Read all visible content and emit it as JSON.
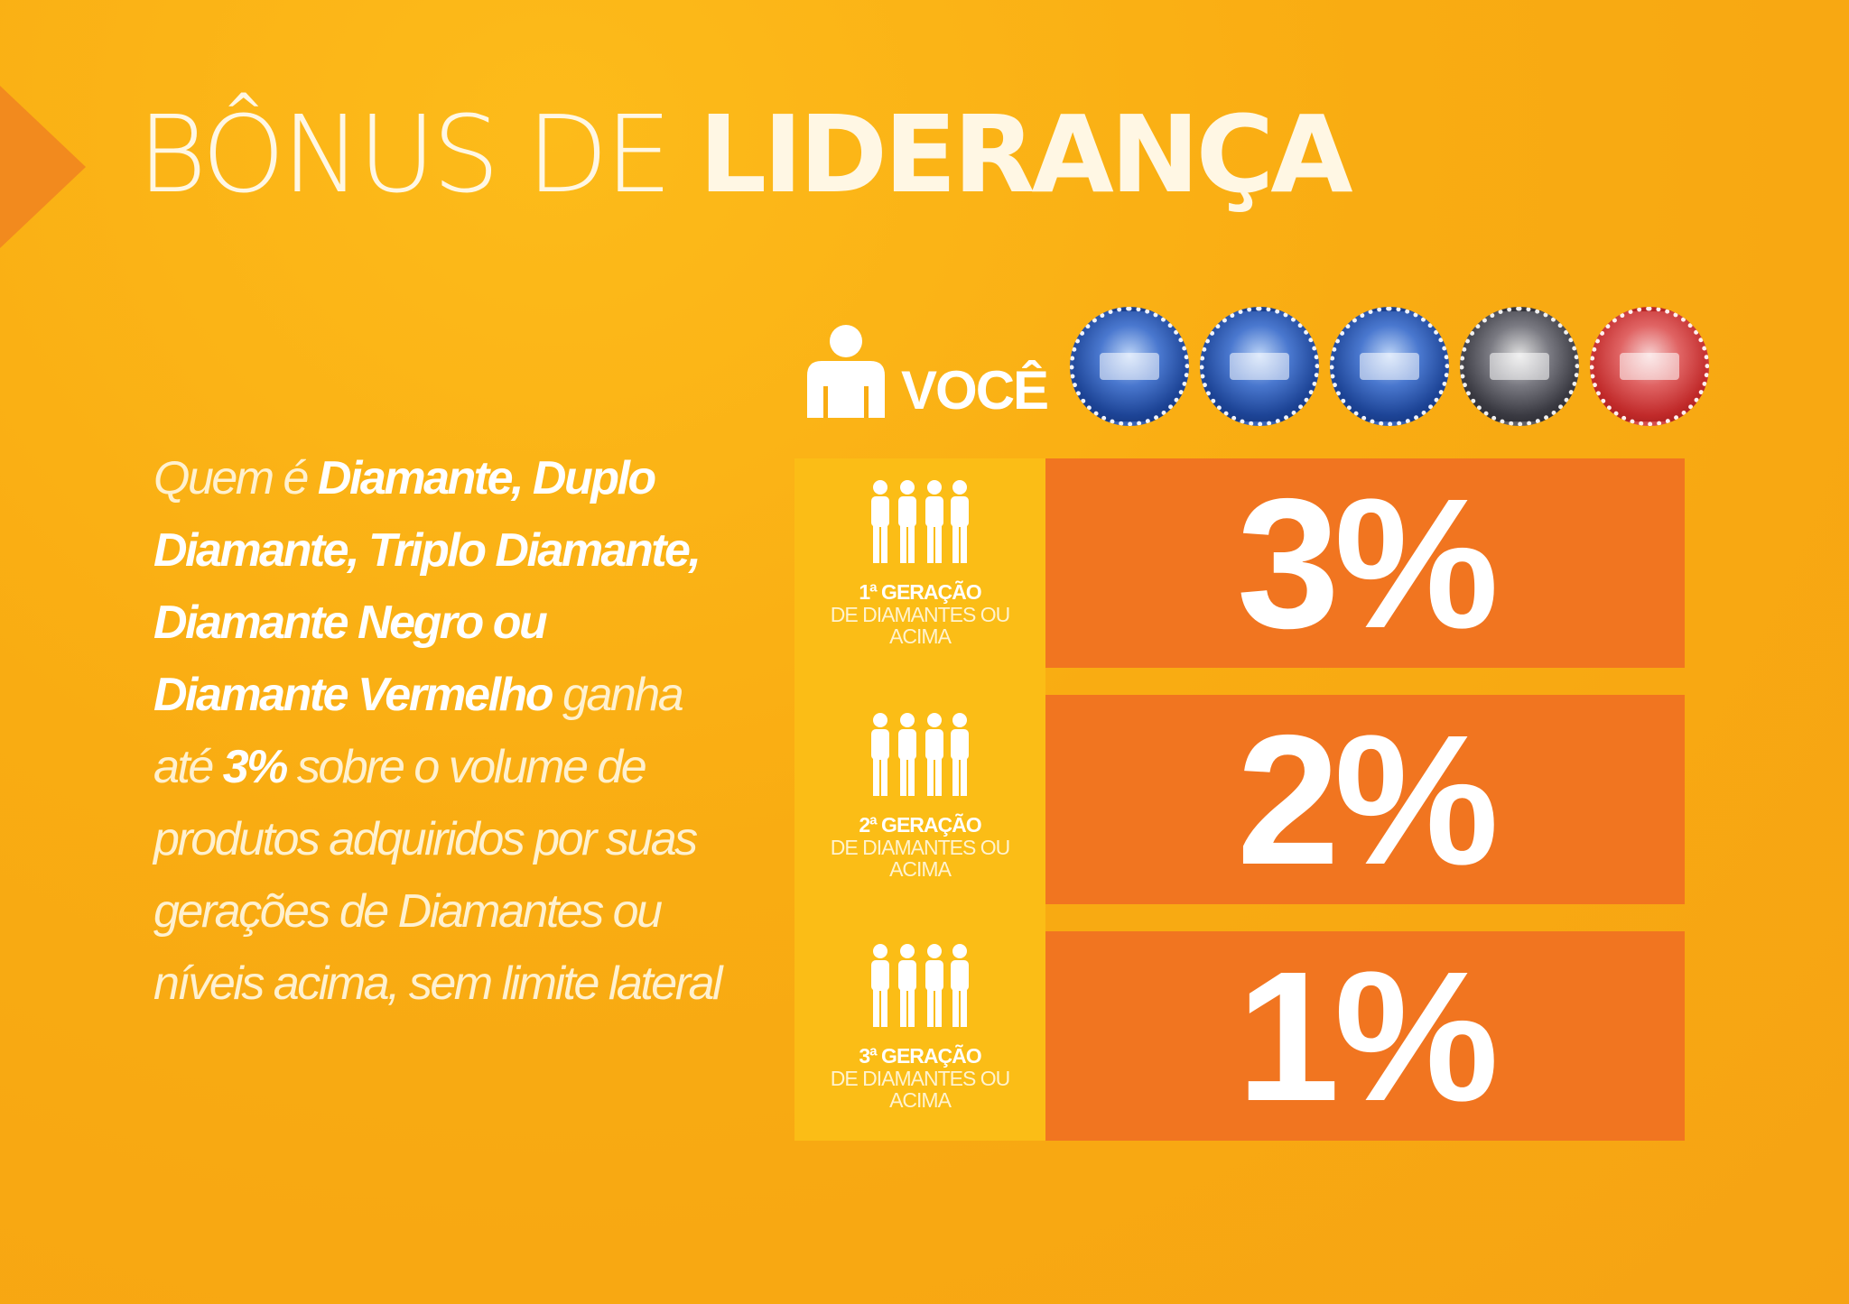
{
  "title": {
    "light": "BÔNUS DE ",
    "bold": "LIDERANÇA"
  },
  "description": {
    "p1": "Quem é ",
    "b1": "Diamante, Duplo Diamante, Triplo Diamante, Diamante Negro ou Diamante Vermelho",
    "p2": " ganha até ",
    "b2": "3%",
    "p3": " sobre o volume de produtos adquiridos por suas gerações de Diamantes ou níveis acima, sem limite lateral"
  },
  "you_label": "VOCÊ",
  "badges": [
    {
      "icon": "diamond-pin-icon",
      "color": "#1d4496"
    },
    {
      "icon": "double-diamond-pin-icon",
      "color": "#1d4496"
    },
    {
      "icon": "triple-diamond-pin-icon",
      "color": "#1d4496"
    },
    {
      "icon": "black-diamond-pin-icon",
      "color": "#3a3a42"
    },
    {
      "icon": "red-diamond-pin-icon",
      "color": "#c12a2a"
    }
  ],
  "generations": [
    {
      "ordinal": "1ª GERAÇÃO",
      "subtitle": "DE DIAMANTES OU ACIMA",
      "percent": "3%"
    },
    {
      "ordinal": "2ª GERAÇÃO",
      "subtitle": "DE DIAMANTES OU ACIMA",
      "percent": "2%"
    },
    {
      "ordinal": "3ª GERAÇÃO",
      "subtitle": "DE DIAMANTES OU ACIMA",
      "percent": "1%"
    }
  ],
  "colors": {
    "background": "#f9ac12",
    "percent_block": "#f17520",
    "label_column": "#fbbd16",
    "arrow": "#f28a1e"
  }
}
